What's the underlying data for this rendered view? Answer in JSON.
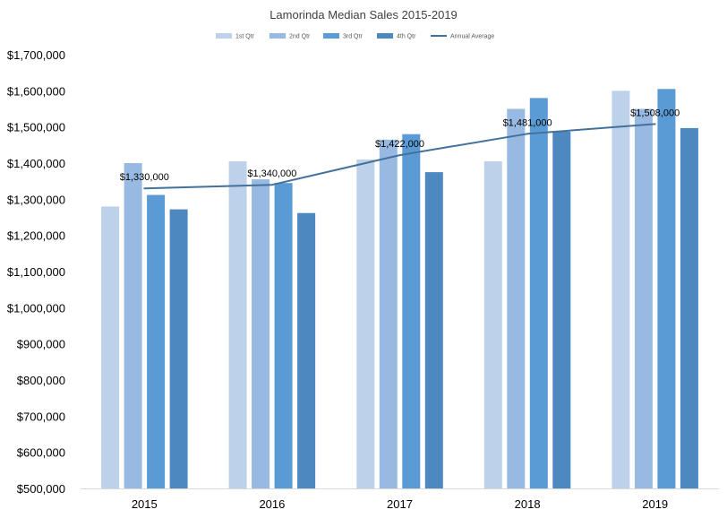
{
  "chart_data": {
    "type": "bar",
    "title": "Lamorinda Median Sales 2015-2019",
    "categories": [
      "2015",
      "2016",
      "2017",
      "2018",
      "2019"
    ],
    "series": [
      {
        "name": "1st Qtr",
        "color": "#bdd1eb",
        "values": [
          1280000,
          1405000,
          1410000,
          1405000,
          1600000
        ]
      },
      {
        "name": "2nd Qtr",
        "color": "#98b9e2",
        "values": [
          1400000,
          1355000,
          1465000,
          1550000,
          1550000
        ]
      },
      {
        "name": "3rd Qtr",
        "color": "#5b9bd5",
        "values": [
          1312000,
          1345000,
          1480000,
          1580000,
          1605000
        ]
      },
      {
        "name": "4th Qtr",
        "color": "#4e88c1",
        "values": [
          1272000,
          1262000,
          1375000,
          1487000,
          1497000
        ]
      }
    ],
    "line_series": {
      "name": "Annual Average",
      "color": "#44719b",
      "values": [
        1330000,
        1340000,
        1422000,
        1481000,
        1508000
      ],
      "labels": [
        "$1,330,000",
        "$1,340,000",
        "$1,422,000",
        "$1,481,000",
        "$1,508,000"
      ]
    },
    "ylim": [
      500000,
      1700000
    ],
    "y_tick_values": [
      500000,
      600000,
      700000,
      800000,
      900000,
      1000000,
      1100000,
      1200000,
      1300000,
      1400000,
      1500000,
      1600000,
      1700000
    ],
    "y_tick_labels": [
      "$500,000",
      "$600,000",
      "$700,000",
      "$800,000",
      "$900,000",
      "$1,000,000",
      "$1,100,000",
      "$1,200,000",
      "$1,300,000",
      "$1,400,000",
      "$1,500,000",
      "$1,600,000",
      "$1,700,000"
    ],
    "xlabel": "",
    "ylabel": "",
    "grid": false,
    "legend_position": "top"
  }
}
